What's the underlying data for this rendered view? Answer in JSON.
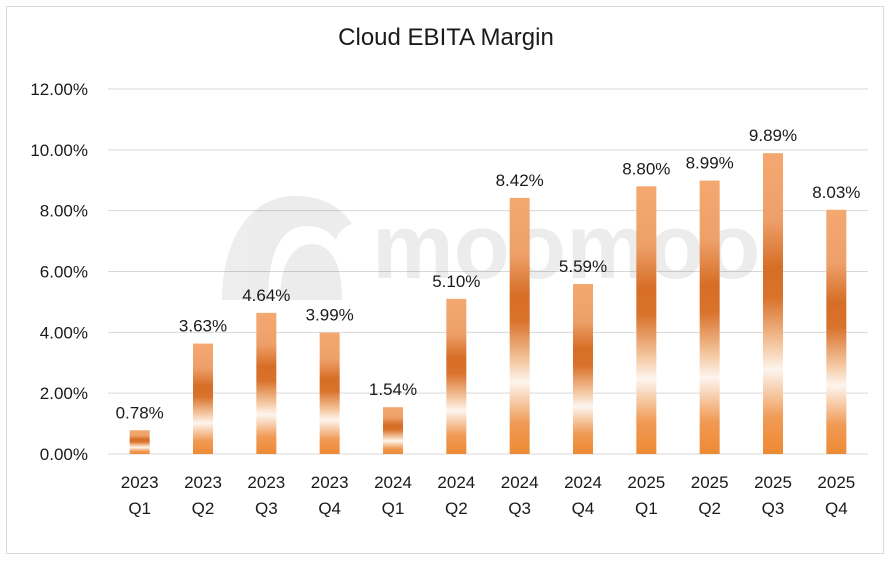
{
  "chart_data": {
    "type": "bar",
    "title": "Cloud EBITA Margin",
    "categories": [
      [
        "2023",
        "Q1"
      ],
      [
        "2023",
        "Q2"
      ],
      [
        "2023",
        "Q3"
      ],
      [
        "2023",
        "Q4"
      ],
      [
        "2024",
        "Q1"
      ],
      [
        "2024",
        "Q2"
      ],
      [
        "2024",
        "Q3"
      ],
      [
        "2024",
        "Q4"
      ],
      [
        "2025",
        "Q1"
      ],
      [
        "2025",
        "Q2"
      ],
      [
        "2025",
        "Q3"
      ],
      [
        "2025",
        "Q4"
      ]
    ],
    "values": [
      0.78,
      3.63,
      4.64,
      3.99,
      1.54,
      5.1,
      8.42,
      5.59,
      8.8,
      8.99,
      9.89,
      8.03
    ],
    "data_labels": [
      "0.78%",
      "3.63%",
      "4.64%",
      "3.99%",
      "1.54%",
      "5.10%",
      "8.42%",
      "5.59%",
      "8.80%",
      "8.99%",
      "9.89%",
      "8.03%"
    ],
    "yticks": [
      "0.00%",
      "2.00%",
      "4.00%",
      "6.00%",
      "8.00%",
      "10.00%",
      "12.00%"
    ],
    "ylim": [
      0,
      12
    ],
    "grid": true,
    "bar_color_dark": "#d2691e",
    "bar_color_light": "#f4a870",
    "bar_color_bottom": "#ee8a33"
  },
  "watermark": {
    "text": "moomoo",
    "icon": "moomoo-logo-icon"
  }
}
